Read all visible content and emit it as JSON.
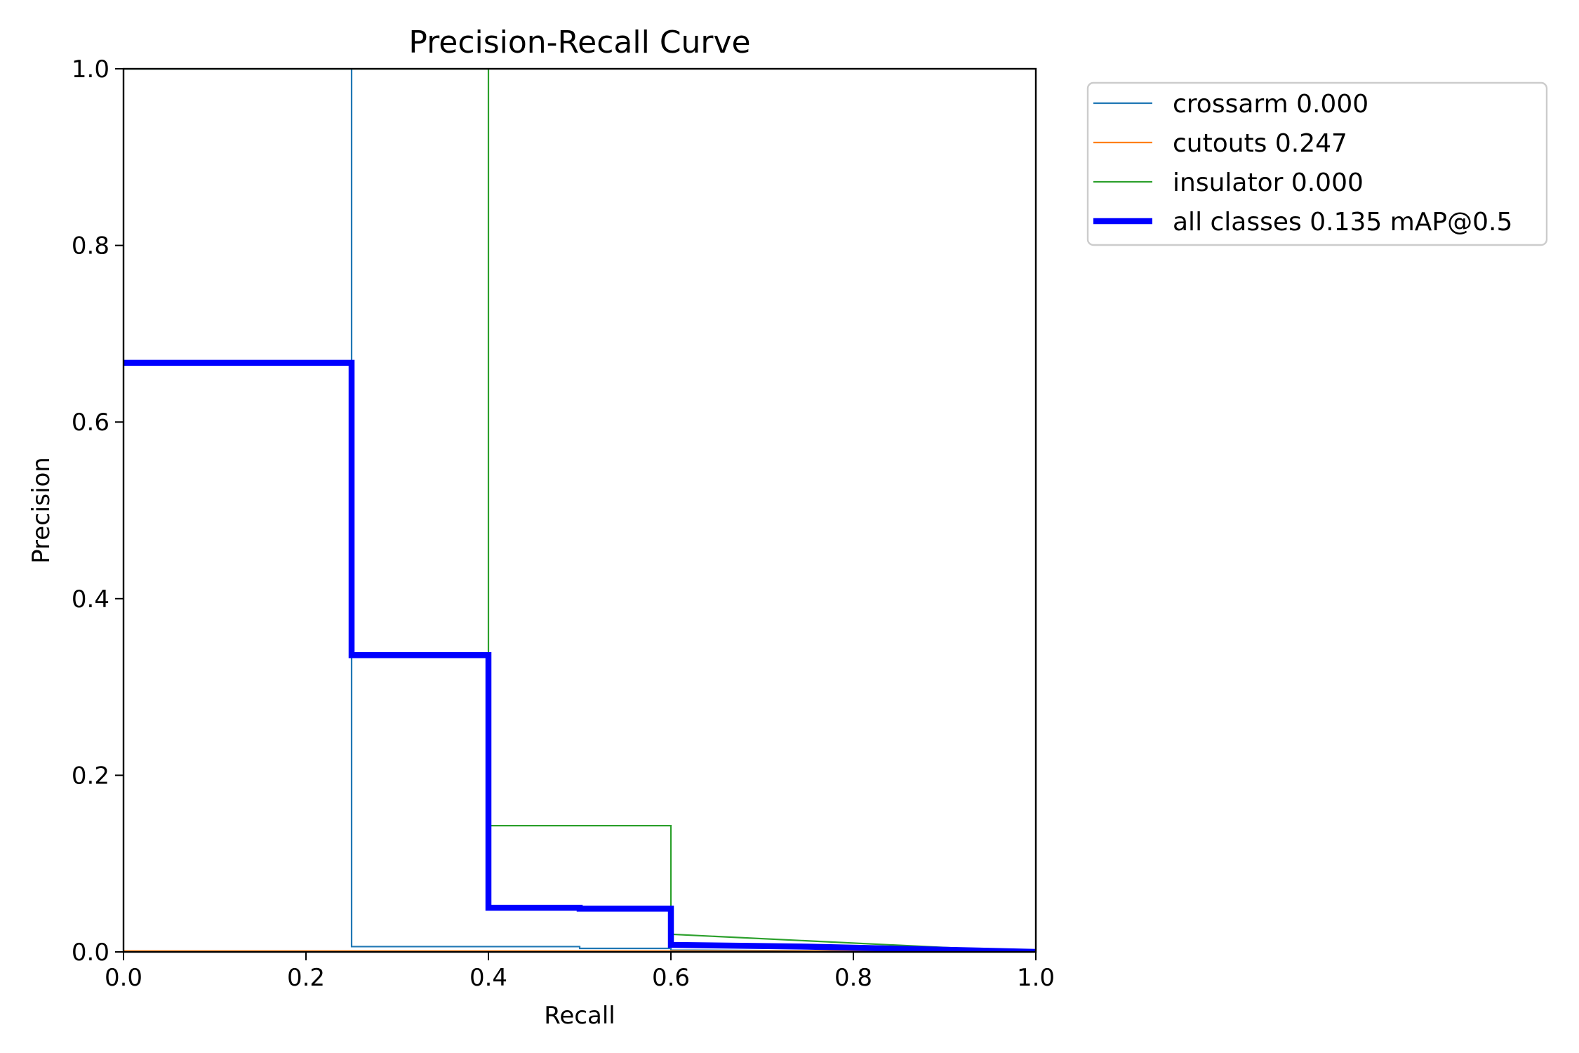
{
  "chart_data": {
    "type": "line",
    "title": "Precision-Recall Curve",
    "xlabel": "Recall",
    "ylabel": "Precision",
    "xlim": [
      0.0,
      1.0
    ],
    "ylim": [
      0.0,
      1.0
    ],
    "xticks": [
      "0.0",
      "0.2",
      "0.4",
      "0.6",
      "0.8",
      "1.0"
    ],
    "yticks": [
      "0.0",
      "0.2",
      "0.4",
      "0.6",
      "0.8",
      "1.0"
    ],
    "grid": false,
    "legend_position": "outside-top-right",
    "series": [
      {
        "name": "crossarm 0.000",
        "color": "#1f77b4",
        "x": [
          0.0,
          0.25,
          0.25,
          0.25,
          0.5,
          0.5,
          0.6,
          0.6,
          1.0
        ],
        "y": [
          1.0,
          1.0,
          1.0,
          0.006,
          0.006,
          0.004,
          0.004,
          0.002,
          0.0
        ]
      },
      {
        "name": "cutouts 0.247",
        "color": "#ff7f0e",
        "x": [
          0.0,
          0.6,
          0.6,
          0.75,
          1.0
        ],
        "y": [
          0.001,
          0.001,
          0.001,
          0.001,
          0.0
        ]
      },
      {
        "name": "insulator 0.000",
        "color": "#2ca02c",
        "x": [
          0.0,
          0.4,
          0.4,
          0.6,
          0.6,
          1.0
        ],
        "y": [
          1.0,
          1.0,
          0.143,
          0.143,
          0.02,
          0.0
        ]
      },
      {
        "name": "all classes 0.135 mAP@0.5",
        "color": "#0000ff",
        "x": [
          0.0,
          0.25,
          0.25,
          0.4,
          0.4,
          0.5,
          0.5,
          0.6,
          0.6,
          0.75,
          1.0
        ],
        "y": [
          0.667,
          0.667,
          0.336,
          0.336,
          0.05,
          0.05,
          0.049,
          0.049,
          0.008,
          0.006,
          0.0
        ]
      }
    ]
  }
}
